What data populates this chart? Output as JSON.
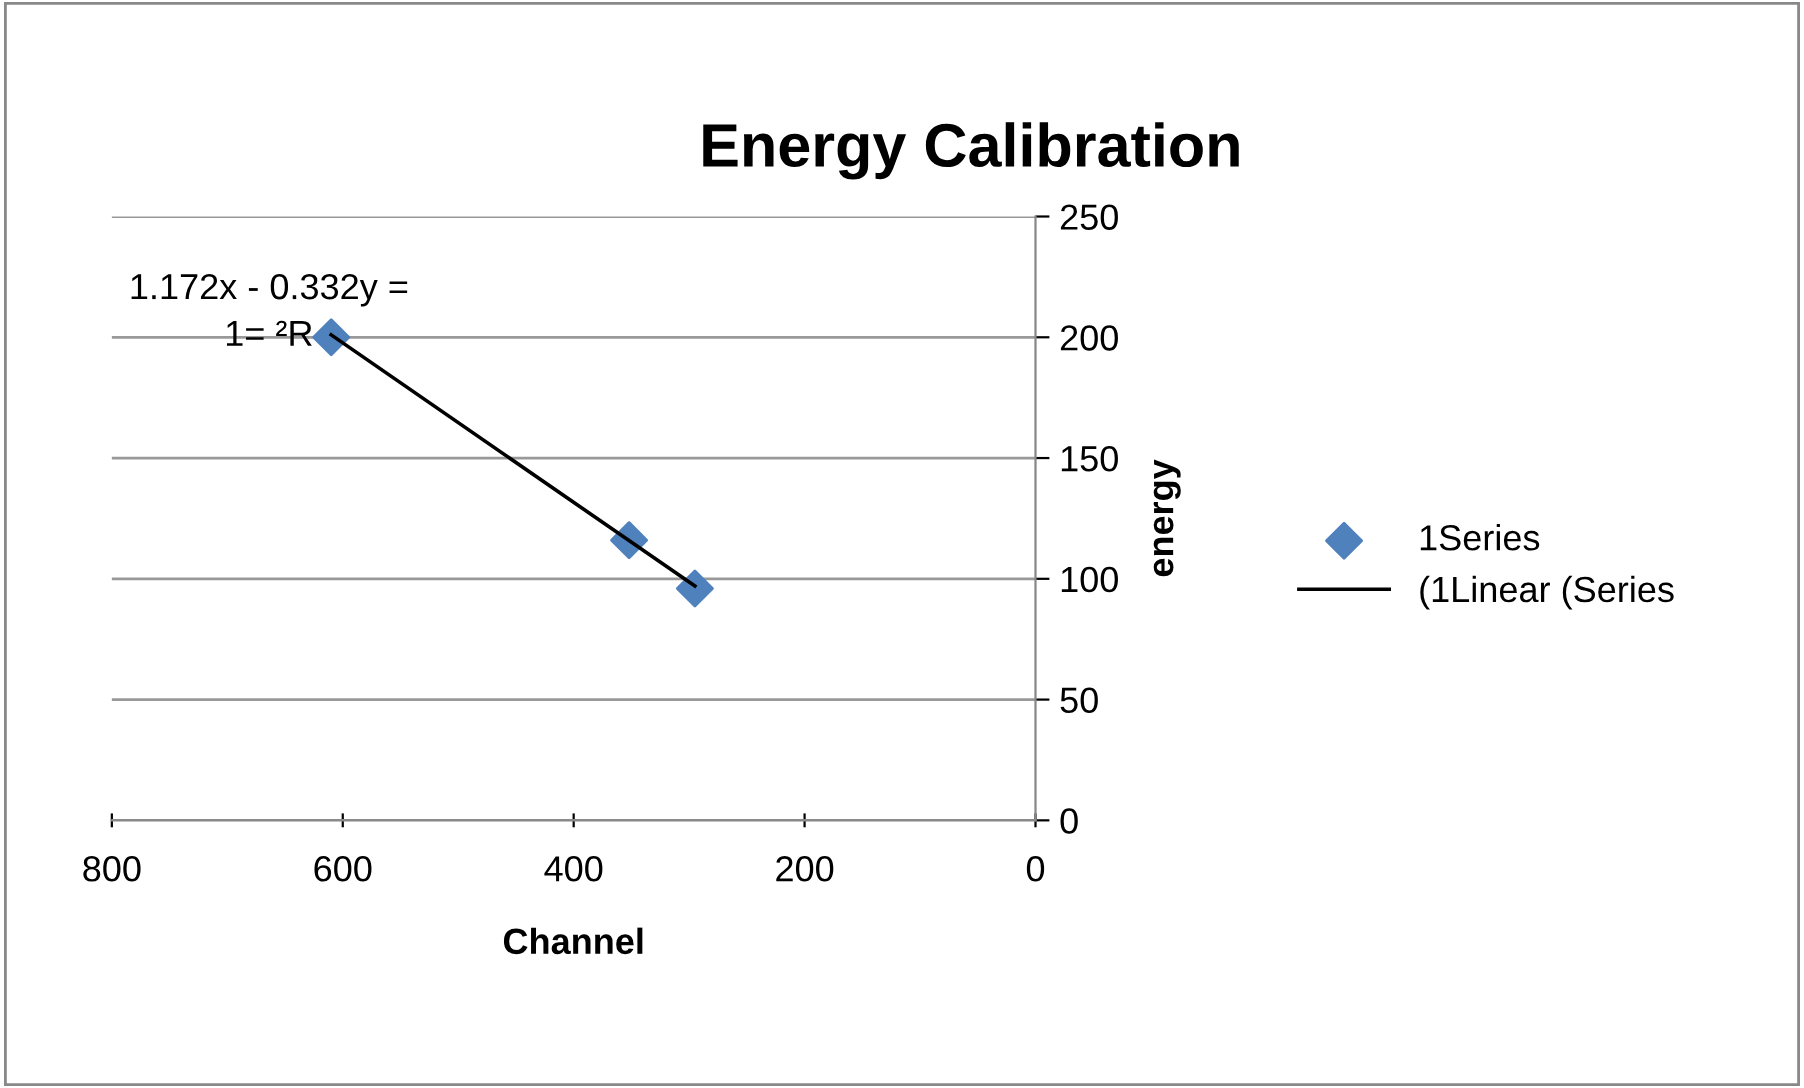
{
  "chart_data": {
    "type": "scatter",
    "title": "Energy Calibration",
    "xlabel": "Channel",
    "ylabel": "energy",
    "series": [
      {
        "name": "1Series",
        "color": "#4f81bd",
        "marker": "diamond",
        "x": [
          610,
          352,
          295
        ],
        "values": [
          200,
          116,
          96
        ]
      },
      {
        "name": "(1Linear (Series",
        "type": "line",
        "color": "#000000",
        "marker": "none",
        "line_style": "solid",
        "x": [
          610,
          295
        ],
        "values": [
          201,
          97
        ]
      }
    ],
    "annotations": [
      "1.172x - 0.332y =\n1= ²R"
    ],
    "xlim": [
      800,
      0
    ],
    "xticks": [
      800,
      600,
      400,
      200,
      0
    ],
    "ylim": [
      0,
      250
    ],
    "yticks": [
      0,
      50,
      100,
      150,
      200,
      250
    ],
    "grid": "y",
    "legend": "right"
  }
}
